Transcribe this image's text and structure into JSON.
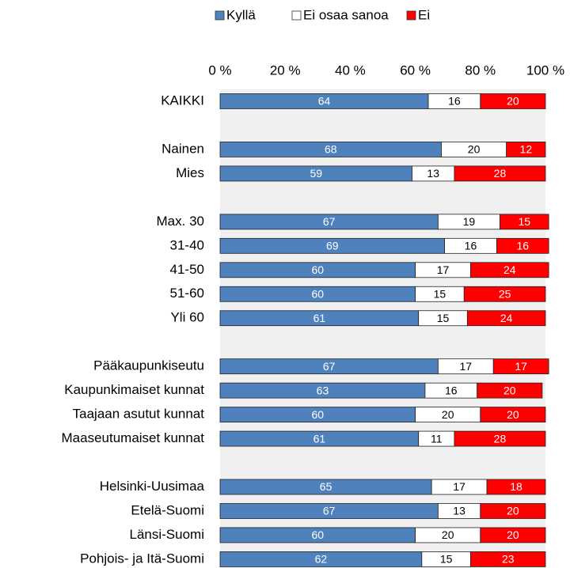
{
  "chart_data": {
    "type": "stacked-bar-horizontal",
    "categories": [
      "KAIKKI",
      null,
      "Nainen",
      "Mies",
      null,
      "Max. 30",
      "31-40",
      "41-50",
      "51-60",
      "Yli 60",
      null,
      "Pääkaupunkiseutu",
      "Kaupunkimaiset kunnat",
      "Taajaan asutut kunnat",
      "Maaseutumaiset kunnat",
      null,
      "Helsinki-Uusimaa",
      "Etelä-Suomi",
      "Länsi-Suomi",
      "Pohjois- ja Itä-Suomi"
    ],
    "series": [
      {
        "name": "Kyllä",
        "color": "#4f81bd",
        "label_color": "#ffffff",
        "values": [
          64,
          null,
          68,
          59,
          null,
          67,
          69,
          60,
          60,
          61,
          null,
          67,
          63,
          60,
          61,
          null,
          65,
          67,
          60,
          62
        ]
      },
      {
        "name": "Ei osaa sanoa",
        "color": "#ffffff",
        "label_color": "#000000",
        "values": [
          16,
          null,
          20,
          13,
          null,
          19,
          16,
          17,
          15,
          15,
          null,
          17,
          16,
          20,
          11,
          null,
          17,
          13,
          20,
          15
        ]
      },
      {
        "name": "Ei",
        "color": "#ff0000",
        "label_color": "#ffffff",
        "values": [
          20,
          null,
          12,
          28,
          null,
          15,
          16,
          24,
          25,
          24,
          null,
          17,
          20,
          20,
          28,
          null,
          18,
          20,
          20,
          23
        ]
      }
    ],
    "xlim": [
      0,
      100
    ],
    "xticks": [
      {
        "value": 0,
        "label": "0 %"
      },
      {
        "value": 20,
        "label": "20 %"
      },
      {
        "value": 40,
        "label": "40 %"
      },
      {
        "value": 60,
        "label": "60 %"
      },
      {
        "value": 80,
        "label": "80 %"
      },
      {
        "value": 100,
        "label": "100 %"
      }
    ],
    "legend": "top"
  }
}
